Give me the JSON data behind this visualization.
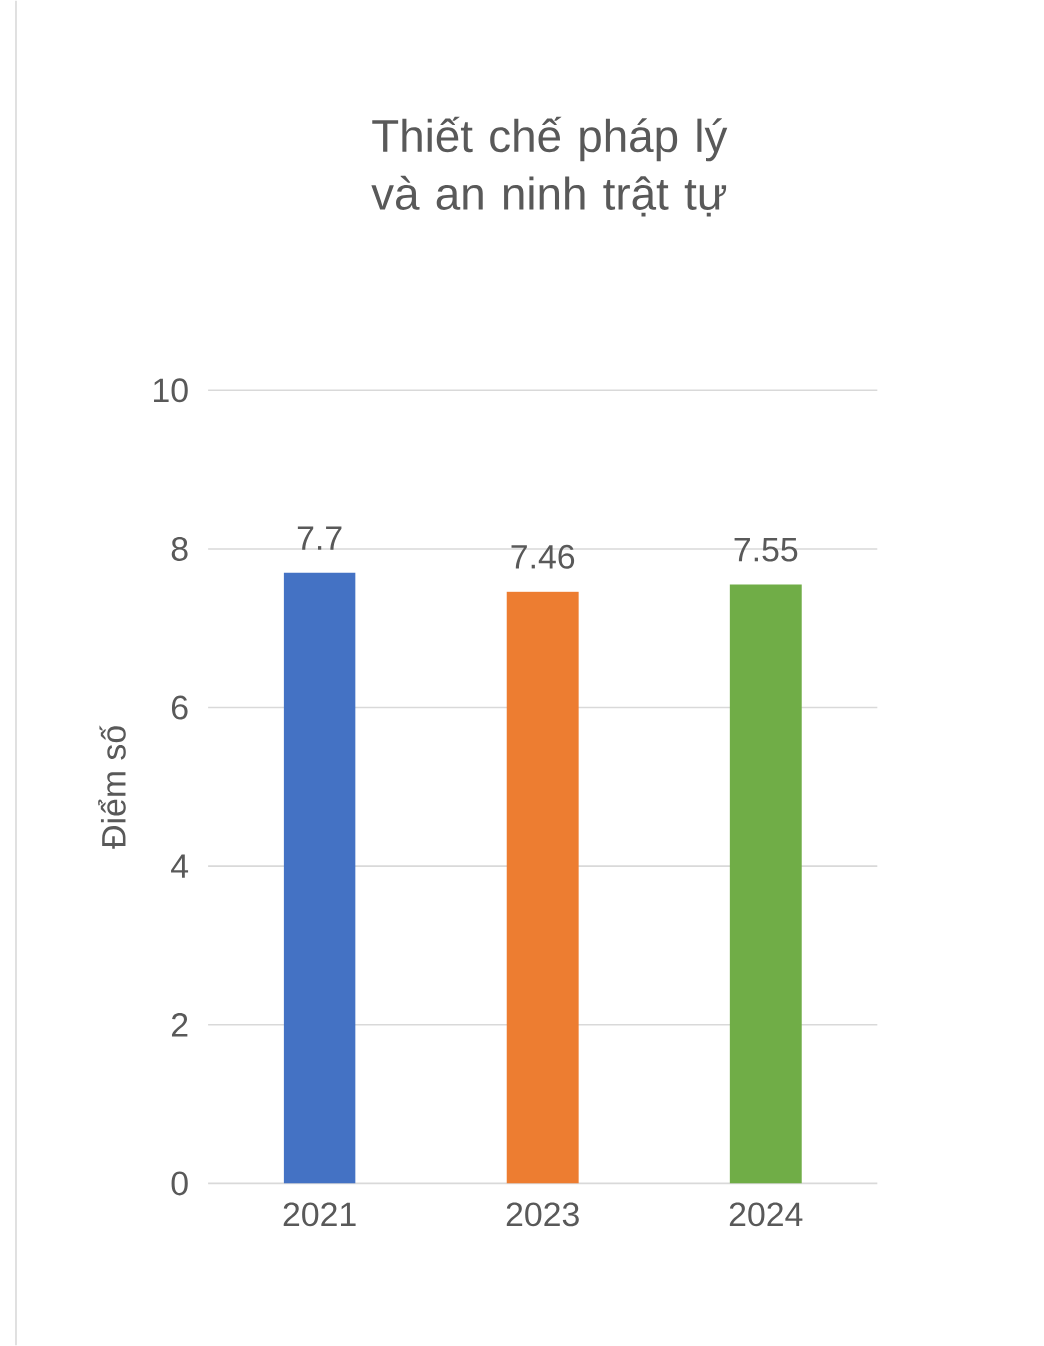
{
  "chart_data": {
    "type": "bar",
    "title": "Thiết chế pháp lý và an ninh trật tự",
    "ylabel": "Điểm số",
    "categories": [
      "2021",
      "2023",
      "2024"
    ],
    "values": [
      7.7,
      7.46,
      7.55
    ],
    "colors": [
      "#4472c4",
      "#ed7d31",
      "#70ad47"
    ],
    "ylim": [
      0,
      10
    ],
    "yticks": [
      0,
      2,
      4,
      6,
      8,
      10
    ],
    "grid": "y",
    "data_labels": true
  }
}
